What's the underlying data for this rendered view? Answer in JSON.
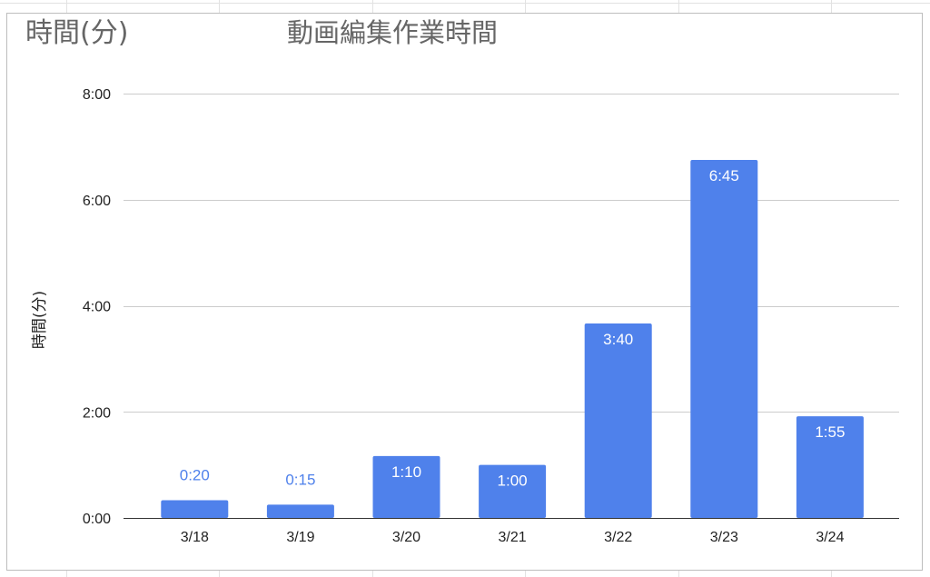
{
  "sheet": {
    "corner_label": "時間(分)"
  },
  "chart_data": {
    "type": "bar",
    "title": "動画編集作業時間",
    "xlabel": "",
    "ylabel": "時間(分)",
    "categories": [
      "3/18",
      "3/19",
      "3/20",
      "3/21",
      "3/22",
      "3/23",
      "3/24"
    ],
    "values": [
      20,
      15,
      70,
      60,
      220,
      405,
      115
    ],
    "value_labels": [
      "0:20",
      "0:15",
      "1:10",
      "1:00",
      "3:40",
      "6:45",
      "1:55"
    ],
    "ylim": [
      0,
      480
    ],
    "y_ticks": [
      0,
      120,
      240,
      360,
      480
    ],
    "y_tick_labels": [
      "0:00",
      "2:00",
      "4:00",
      "6:00",
      "8:00"
    ],
    "bar_color": "#4f81eb",
    "outside_label_color": "#4f81eb",
    "inside_label_color": "#ffffff",
    "gridlines": true,
    "legend": "none"
  }
}
